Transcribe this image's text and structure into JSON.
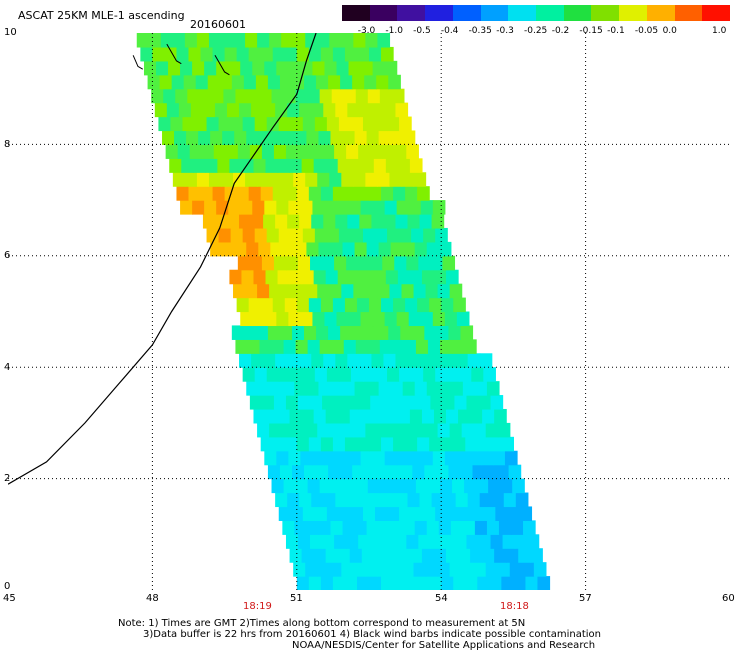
{
  "title": "ASCAT 25KM MLE-1 ascending",
  "date": "20160601",
  "colorbar": {
    "labels": [
      "-3.0",
      "-1.0",
      "-0.5",
      "-0.4",
      "-0.35",
      "-0.3",
      "-0.25",
      "-0.2",
      "-0.15",
      "-0.1",
      "-0.05",
      "0.0",
      "1.0"
    ],
    "colors": [
      "#200020",
      "#3a0060",
      "#4010a0",
      "#2020e0",
      "#0060ff",
      "#00a0ff",
      "#00e0f0",
      "#00f0a0",
      "#20e040",
      "#80e000",
      "#e0f000",
      "#ffb000",
      "#ff6000",
      "#ff1000"
    ]
  },
  "axes": {
    "y_ticks": [
      "10",
      "8",
      "6",
      "4",
      "2",
      "0"
    ],
    "x_ticks": [
      "45",
      "48",
      "51",
      "54",
      "57",
      "60"
    ]
  },
  "time_labels": [
    "18:19",
    "18:18"
  ],
  "notes": [
    "Note: 1) Times are GMT 2)Times along bottom correspond to measurement at 5N",
    "3)Data buffer is 22 hrs from 20160601 4) Black wind barbs indicate possible contamination",
    "NOAA/NESDIS/Center for Satellite Applications and Research"
  ]
}
